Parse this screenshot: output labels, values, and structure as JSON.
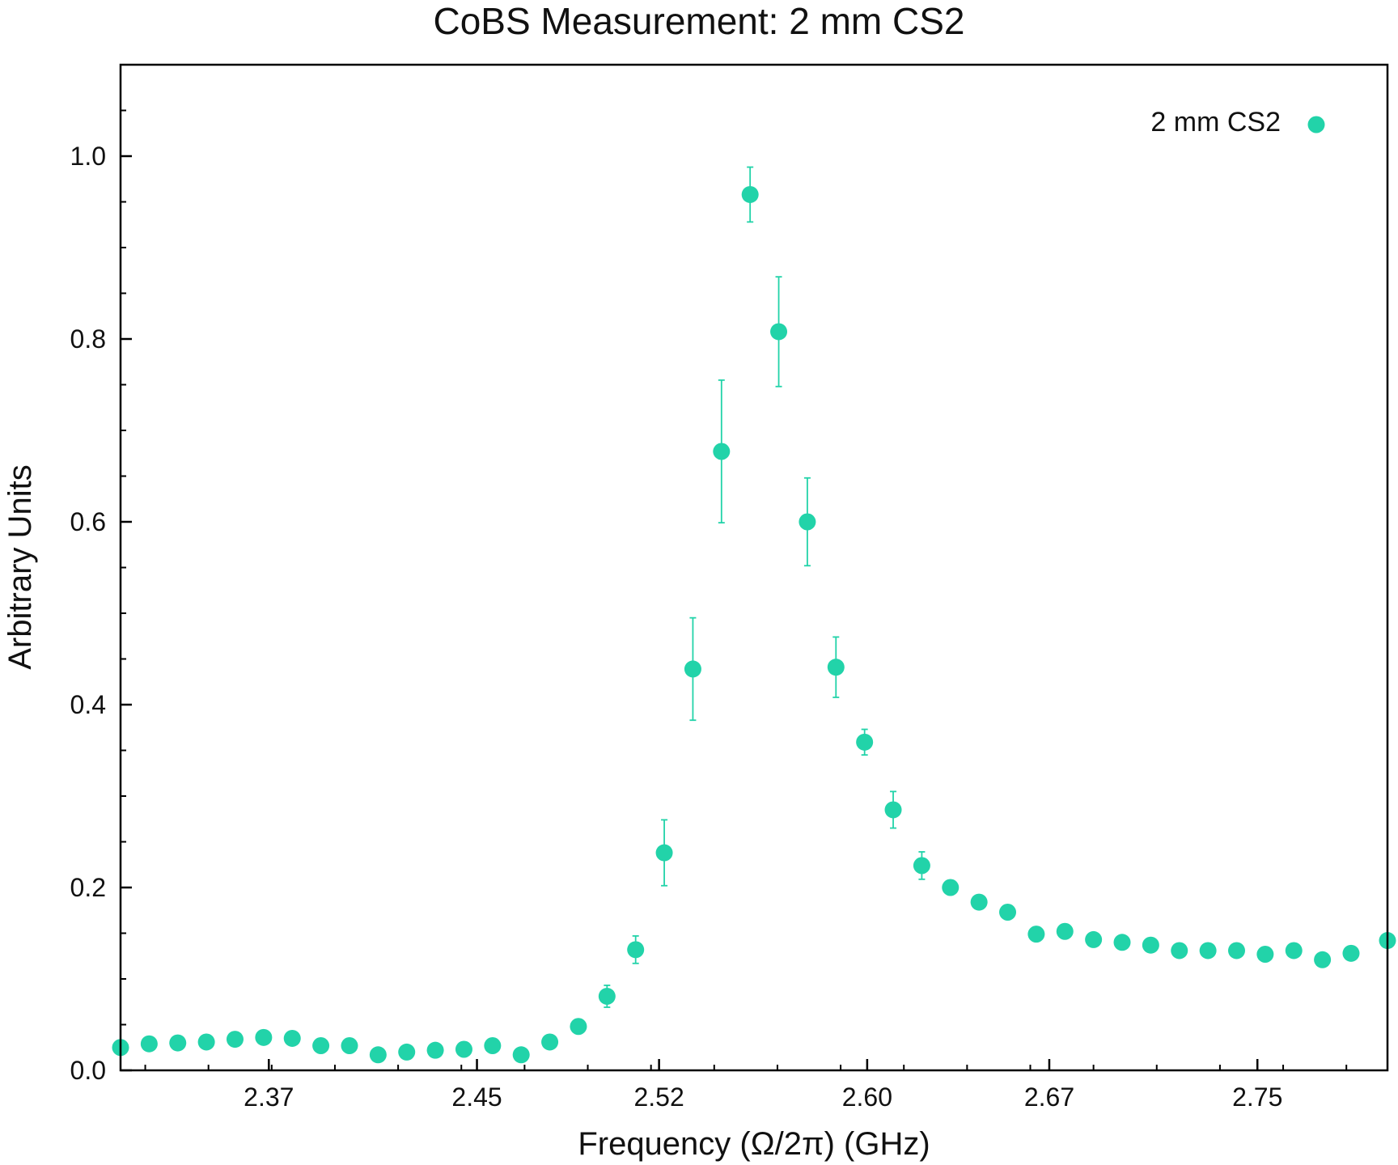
{
  "chart_data": {
    "type": "scatter",
    "title": "CoBS Measurement: 2 mm CS2",
    "xlabel": "Frequency (Ω/2π) (GHz)",
    "ylabel": "Arbitrary Units",
    "xlim": [
      2.313,
      2.8
    ],
    "ylim": [
      0.0,
      1.1
    ],
    "xticks": [
      2.37,
      2.45,
      2.52,
      2.6,
      2.67,
      2.75
    ],
    "xtick_labels": [
      "2.37",
      "2.45",
      "2.52",
      "2.60",
      "2.67",
      "2.75"
    ],
    "yticks": [
      0.0,
      0.2,
      0.4,
      0.6,
      0.8,
      1.0
    ],
    "ytick_labels": [
      "0.0",
      "0.2",
      "0.4",
      "0.6",
      "0.8",
      "1.0"
    ],
    "grid": false,
    "legend_position": "top-right",
    "color": "#22d3a9",
    "series": [
      {
        "name": "2 mm CS2",
        "x": [
          2.313,
          2.324,
          2.335,
          2.346,
          2.357,
          2.368,
          2.379,
          2.39,
          2.401,
          2.412,
          2.423,
          2.434,
          2.445,
          2.456,
          2.467,
          2.478,
          2.489,
          2.5,
          2.511,
          2.522,
          2.533,
          2.544,
          2.555,
          2.566,
          2.577,
          2.588,
          2.599,
          2.61,
          2.621,
          2.632,
          2.643,
          2.654,
          2.665,
          2.676,
          2.687,
          2.698,
          2.709,
          2.72,
          2.731,
          2.742,
          2.753,
          2.764,
          2.775,
          2.786,
          2.8
        ],
        "y": [
          0.025,
          0.029,
          0.03,
          0.031,
          0.034,
          0.036,
          0.035,
          0.027,
          0.027,
          0.017,
          0.02,
          0.022,
          0.023,
          0.027,
          0.017,
          0.031,
          0.048,
          0.081,
          0.132,
          0.238,
          0.439,
          0.677,
          0.958,
          0.808,
          0.6,
          0.441,
          0.359,
          0.285,
          0.224,
          0.2,
          0.184,
          0.173,
          0.149,
          0.152,
          0.143,
          0.14,
          0.137,
          0.131,
          0.131,
          0.131,
          0.127,
          0.131,
          0.121,
          0.128,
          0.142
        ],
        "err": [
          0,
          0,
          0,
          0,
          0,
          0,
          0,
          0,
          0,
          0,
          0,
          0,
          0,
          0,
          0,
          0,
          0,
          0.012,
          0.015,
          0.036,
          0.056,
          0.078,
          0.03,
          0.06,
          0.048,
          0.033,
          0.014,
          0.02,
          0.015,
          0,
          0,
          0,
          0,
          0,
          0,
          0,
          0,
          0,
          0,
          0,
          0,
          0,
          0,
          0,
          0
        ]
      }
    ]
  }
}
